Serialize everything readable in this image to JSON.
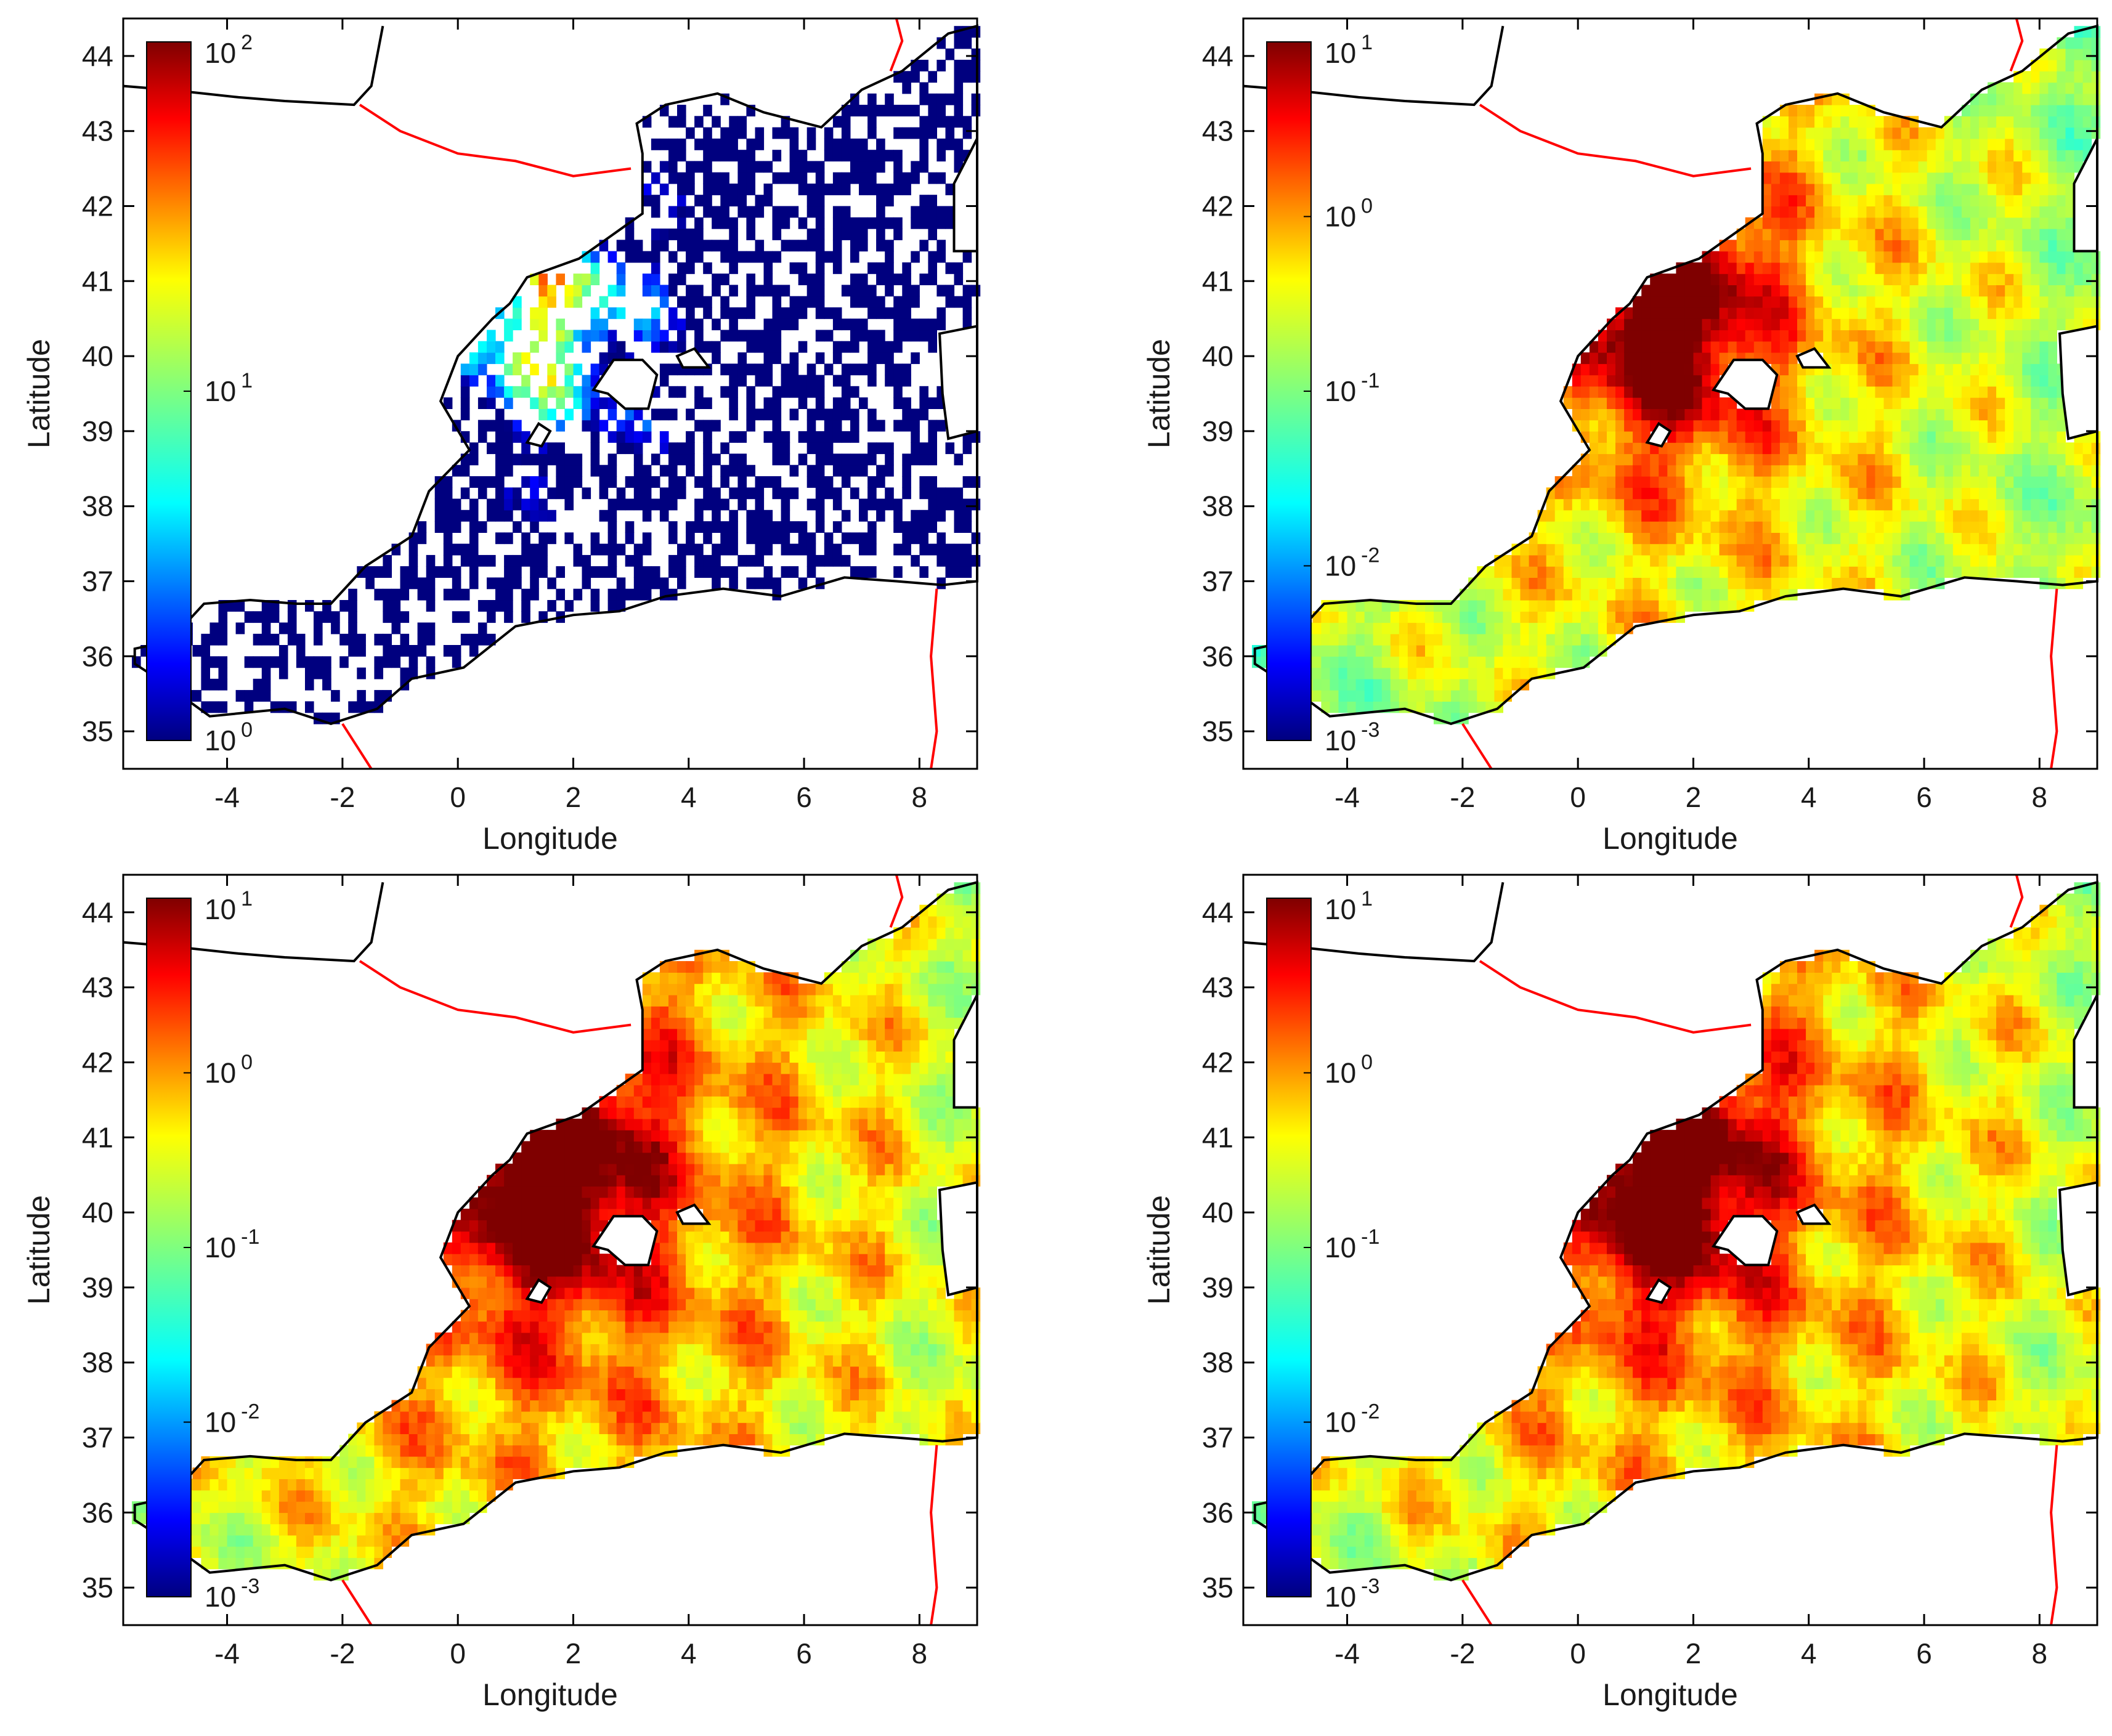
{
  "chart_data": [
    {
      "type": "heatmap",
      "xlabel": "Longitude",
      "ylabel": "Latitude",
      "xlim": [
        -5.8,
        9.0
      ],
      "ylim": [
        34.5,
        44.5
      ],
      "xticks": [
        -4,
        -2,
        0,
        2,
        4,
        6,
        8
      ],
      "yticks": [
        35,
        36,
        37,
        38,
        39,
        40,
        41,
        42,
        43,
        44
      ],
      "colorbar": {
        "scale": "log",
        "range": [
          1,
          100
        ],
        "ticks": [
          {
            "base": "10",
            "exp": "0"
          },
          {
            "base": "10",
            "exp": "1"
          },
          {
            "base": "10",
            "exp": "2"
          }
        ]
      },
      "field": {
        "mean_exp": -0.15,
        "sparsity": 0.45
      }
    },
    {
      "type": "heatmap",
      "xlabel": "Longitude",
      "ylabel": "Latitude",
      "xlim": [
        -5.8,
        9.0
      ],
      "ylim": [
        34.5,
        44.5
      ],
      "xticks": [
        -4,
        -2,
        0,
        2,
        4,
        6,
        8
      ],
      "yticks": [
        35,
        36,
        37,
        38,
        39,
        40,
        41,
        42,
        43,
        44
      ],
      "colorbar": {
        "scale": "log",
        "range": [
          0.001,
          10
        ],
        "ticks": [
          {
            "base": "10",
            "exp": "-3"
          },
          {
            "base": "10",
            "exp": "-2"
          },
          {
            "base": "10",
            "exp": "-1"
          },
          {
            "base": "10",
            "exp": "0"
          },
          {
            "base": "10",
            "exp": "1"
          }
        ]
      },
      "field": {
        "mean_exp": 0.1,
        "sparsity": 0
      }
    },
    {
      "type": "heatmap",
      "xlabel": "Longitude",
      "ylabel": "Latitude",
      "xlim": [
        -5.8,
        9.0
      ],
      "ylim": [
        34.5,
        44.5
      ],
      "xticks": [
        -4,
        -2,
        0,
        2,
        4,
        6,
        8
      ],
      "yticks": [
        35,
        36,
        37,
        38,
        39,
        40,
        41,
        42,
        43,
        44
      ],
      "colorbar": {
        "scale": "log",
        "range": [
          0.001,
          10
        ],
        "ticks": [
          {
            "base": "10",
            "exp": "-3"
          },
          {
            "base": "10",
            "exp": "-2"
          },
          {
            "base": "10",
            "exp": "-1"
          },
          {
            "base": "10",
            "exp": "0"
          },
          {
            "base": "10",
            "exp": "1"
          }
        ]
      },
      "field": {
        "mean_exp": 0.35,
        "sparsity": 0
      }
    },
    {
      "type": "heatmap",
      "xlabel": "Longitude",
      "ylabel": "Latitude",
      "xlim": [
        -5.8,
        9.0
      ],
      "ylim": [
        34.5,
        44.5
      ],
      "xticks": [
        -4,
        -2,
        0,
        2,
        4,
        6,
        8
      ],
      "yticks": [
        35,
        36,
        37,
        38,
        39,
        40,
        41,
        42,
        43,
        44
      ],
      "colorbar": {
        "scale": "log",
        "range": [
          0.001,
          10
        ],
        "ticks": [
          {
            "base": "10",
            "exp": "-3"
          },
          {
            "base": "10",
            "exp": "-2"
          },
          {
            "base": "10",
            "exp": "-1"
          },
          {
            "base": "10",
            "exp": "0"
          },
          {
            "base": "10",
            "exp": "1"
          }
        ]
      },
      "field": {
        "mean_exp": 0.3,
        "sparsity": 0
      }
    }
  ]
}
